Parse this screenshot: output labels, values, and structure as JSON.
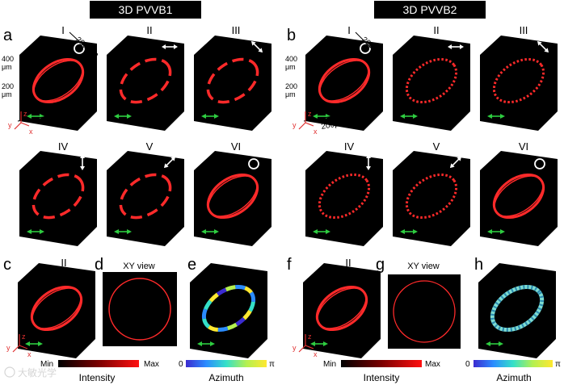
{
  "titles": {
    "left": "3D PVVB1",
    "right": "3D PVVB2"
  },
  "panel_letters": [
    "a",
    "b",
    "c",
    "d",
    "e",
    "f",
    "g",
    "h"
  ],
  "roman": [
    "I",
    "II",
    "III",
    "IV",
    "V",
    "VI"
  ],
  "dims": {
    "left_top": "200 μm",
    "left_side": "200 μm",
    "right_top": "200μm",
    "right_side": "200μm",
    "right_bottom": "200μm"
  },
  "z_labels": {
    "upper": "400",
    "lower": "200",
    "unit": "μm"
  },
  "axes": {
    "x": "x",
    "y": "y",
    "z": "z"
  },
  "views": {
    "xy": "XY view"
  },
  "colorbars": {
    "intensity_min": "Min",
    "intensity_max": "Max",
    "intensity_label": "Intensity",
    "azimuth_min": "0",
    "azimuth_max": "π",
    "azimuth_label": "Azimuth"
  },
  "colors": {
    "ring": "#ff2a2a",
    "cube_face": "#000000",
    "arrow_white": "#ffffff",
    "arrow_green": "#2ecc40",
    "axis_red": "#e03030",
    "title_bg": "#000000",
    "title_fg": "#ffffff"
  },
  "watermark": "大敏光学"
}
